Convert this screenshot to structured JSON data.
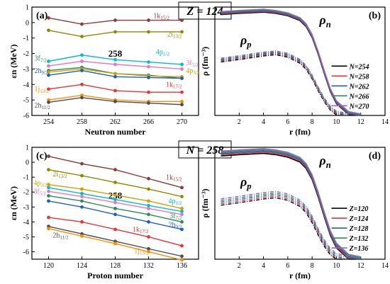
{
  "headers": {
    "top": "Z = 124",
    "bottom": "N = 258"
  },
  "chart_data": [
    {
      "panel": "(a)",
      "type": "line",
      "x": [
        254,
        258,
        262,
        266,
        270
      ],
      "xlim": [
        252,
        272
      ],
      "ylim": [
        -6,
        1
      ],
      "xticks": [
        "254",
        "258",
        "262",
        "266",
        "270"
      ],
      "yticks": [
        "1",
        "0",
        "-1",
        "-2",
        "-3",
        "-4",
        "-5",
        "-6"
      ],
      "xlabel": "Neutron number",
      "ylabel": "εn (MeV)",
      "center_label": "258",
      "series": [
        {
          "name": "1k15/2",
          "color": "#8b3a3a",
          "values": [
            0.3,
            -0.1,
            0.15,
            0.15,
            0.15
          ]
        },
        {
          "name": "2i13/2",
          "color": "#8b8b00",
          "values": [
            -0.5,
            -0.9,
            -0.6,
            -0.6,
            -0.6
          ]
        },
        {
          "name": "4p1/2",
          "color": "#00bcd4",
          "values": [
            -2.5,
            -2.1,
            -2.4,
            -2.55,
            -2.7
          ]
        },
        {
          "name": "3f5/2",
          "color": "#e377c2",
          "values": [
            -2.8,
            -2.5,
            -2.7,
            -2.85,
            -3.0
          ]
        },
        {
          "name": "3f7/2",
          "color": "#2e8b57",
          "values": [
            -3.1,
            -2.9,
            -3.3,
            -3.4,
            -3.6
          ]
        },
        {
          "name": "4p3/2",
          "color": "#d2a000",
          "values": [
            -3.2,
            -3.0,
            -3.3,
            -3.45,
            -3.5
          ]
        },
        {
          "name": "2h9/2",
          "color": "#1f5fbf",
          "values": [
            -3.4,
            -3.1,
            -3.5,
            -3.55,
            -3.6
          ]
        },
        {
          "name": "1k17/2",
          "color": "#e8333a",
          "values": [
            -4.3,
            -4.0,
            -4.4,
            -4.5,
            -4.5
          ]
        },
        {
          "name": "1j13/2",
          "color": "#ff8c00",
          "values": [
            -5.0,
            -4.7,
            -5.0,
            -5.1,
            -5.1
          ]
        },
        {
          "name": "2h11/2",
          "color": "#4d4d4d",
          "values": [
            -5.15,
            -4.85,
            -5.1,
            -5.2,
            -5.3
          ]
        }
      ]
    },
    {
      "panel": "(b)",
      "type": "line",
      "xlim": [
        0,
        14
      ],
      "ylim": [
        0,
        0.09
      ],
      "xticks": [
        "2",
        "4",
        "6",
        "8",
        "10",
        "12",
        "14"
      ],
      "xlabel": "r (fm)",
      "ylabel": "ρ (fm⁻³)",
      "labels": {
        "rho_n": "ρn",
        "rho_p": "ρp"
      },
      "legend": [
        "N=254",
        "N=258",
        "N=262",
        "N=266",
        "N=270"
      ],
      "legend_colors": [
        "#000000",
        "#e8333a",
        "#1f5fbf",
        "#2e8b57",
        "#9467bd"
      ],
      "profiles": {
        "neutron": {
          "r": [
            0.5,
            2,
            4,
            5,
            6,
            7,
            7.5,
            8,
            8.5,
            9,
            9.5,
            10,
            11,
            12
          ],
          "rho": [
            0.085,
            0.086,
            0.087,
            0.086,
            0.084,
            0.08,
            0.075,
            0.066,
            0.052,
            0.036,
            0.021,
            0.011,
            0.002,
            0
          ]
        },
        "proton": {
          "r": [
            0.5,
            2,
            4,
            5,
            6,
            7,
            7.5,
            8,
            8.5,
            9,
            9.5,
            10,
            11
          ],
          "rho": [
            0.046,
            0.048,
            0.051,
            0.052,
            0.05,
            0.045,
            0.04,
            0.032,
            0.022,
            0.013,
            0.006,
            0.002,
            0
          ]
        }
      }
    },
    {
      "panel": "(c)",
      "type": "line",
      "x": [
        120,
        124,
        128,
        132,
        136
      ],
      "xlim": [
        118,
        138
      ],
      "ylim": [
        -6.5,
        1
      ],
      "xticks": [
        "120",
        "124",
        "128",
        "132",
        "136"
      ],
      "yticks": [
        "1",
        "0",
        "-1",
        "-2",
        "-3",
        "-4",
        "-5",
        "-6"
      ],
      "xlabel": "Proton number",
      "ylabel": "εn (MeV)",
      "center_label": "258",
      "series": [
        {
          "name": "1k15/2",
          "color": "#8b3a3a",
          "values": [
            0.4,
            -0.1,
            -0.5,
            -1.1,
            -1.7
          ]
        },
        {
          "name": "2i13/2",
          "color": "#8b8b00",
          "values": [
            -0.5,
            -0.9,
            -1.35,
            -1.8,
            -2.3
          ]
        },
        {
          "name": "4p3/2",
          "color": "#d2a000",
          "values": [
            -1.5,
            -1.8,
            -2.2,
            -2.6,
            -3.1
          ]
        },
        {
          "name": "4p1/2",
          "color": "#00bcd4",
          "values": [
            -1.7,
            -2.1,
            -2.5,
            -2.9,
            -3.3
          ]
        },
        {
          "name": "3f5/2",
          "color": "#e377c2",
          "values": [
            -1.95,
            -2.3,
            -2.7,
            -3.1,
            -3.5
          ]
        },
        {
          "name": "3f7/2",
          "color": "#2e8b57",
          "values": [
            -2.25,
            -2.6,
            -3.1,
            -3.5,
            -4.0
          ]
        },
        {
          "name": "2h9/2",
          "color": "#1f5fbf",
          "values": [
            -2.6,
            -3.0,
            -3.5,
            -4.0,
            -4.5
          ]
        },
        {
          "name": "1k17/2",
          "color": "#e8333a",
          "values": [
            -3.7,
            -4.0,
            -4.5,
            -5.0,
            -5.6
          ]
        },
        {
          "name": "2h11/2",
          "color": "#4d4d4d",
          "values": [
            -4.3,
            -4.8,
            -5.3,
            -5.8,
            -6.3
          ]
        },
        {
          "name": "1j13/2",
          "color": "#ff8c00",
          "values": [
            -4.45,
            -4.95,
            -5.45,
            -6.0,
            -6.55
          ]
        }
      ]
    },
    {
      "panel": "(d)",
      "type": "line",
      "xlim": [
        0,
        14
      ],
      "ylim": [
        0,
        0.09
      ],
      "xticks": [
        "2",
        "4",
        "6",
        "8",
        "10",
        "12",
        "14"
      ],
      "xlabel": "r (fm)",
      "ylabel": "ρ (fm⁻³)",
      "labels": {
        "rho_n": "ρn",
        "rho_p": "ρp"
      },
      "legend": [
        "Z=120",
        "Z=124",
        "Z=128",
        "Z=132",
        "Z=136"
      ],
      "legend_colors": [
        "#000000",
        "#e8333a",
        "#1f5fbf",
        "#2e8b57",
        "#9467bd"
      ],
      "profiles": {
        "neutron": {
          "r": [
            0.5,
            2,
            4,
            5,
            6,
            7,
            7.5,
            8,
            8.5,
            9,
            9.5,
            10,
            11,
            12
          ],
          "rho": [
            0.085,
            0.086,
            0.087,
            0.086,
            0.084,
            0.08,
            0.075,
            0.066,
            0.052,
            0.036,
            0.021,
            0.011,
            0.002,
            0
          ]
        },
        "proton": {
          "r": [
            0.5,
            2,
            4,
            5,
            6,
            7,
            7.5,
            8,
            8.5,
            9,
            9.5,
            10,
            11
          ],
          "rho": [
            0.046,
            0.048,
            0.051,
            0.052,
            0.05,
            0.045,
            0.04,
            0.032,
            0.022,
            0.013,
            0.006,
            0.002,
            0
          ]
        }
      }
    }
  ]
}
